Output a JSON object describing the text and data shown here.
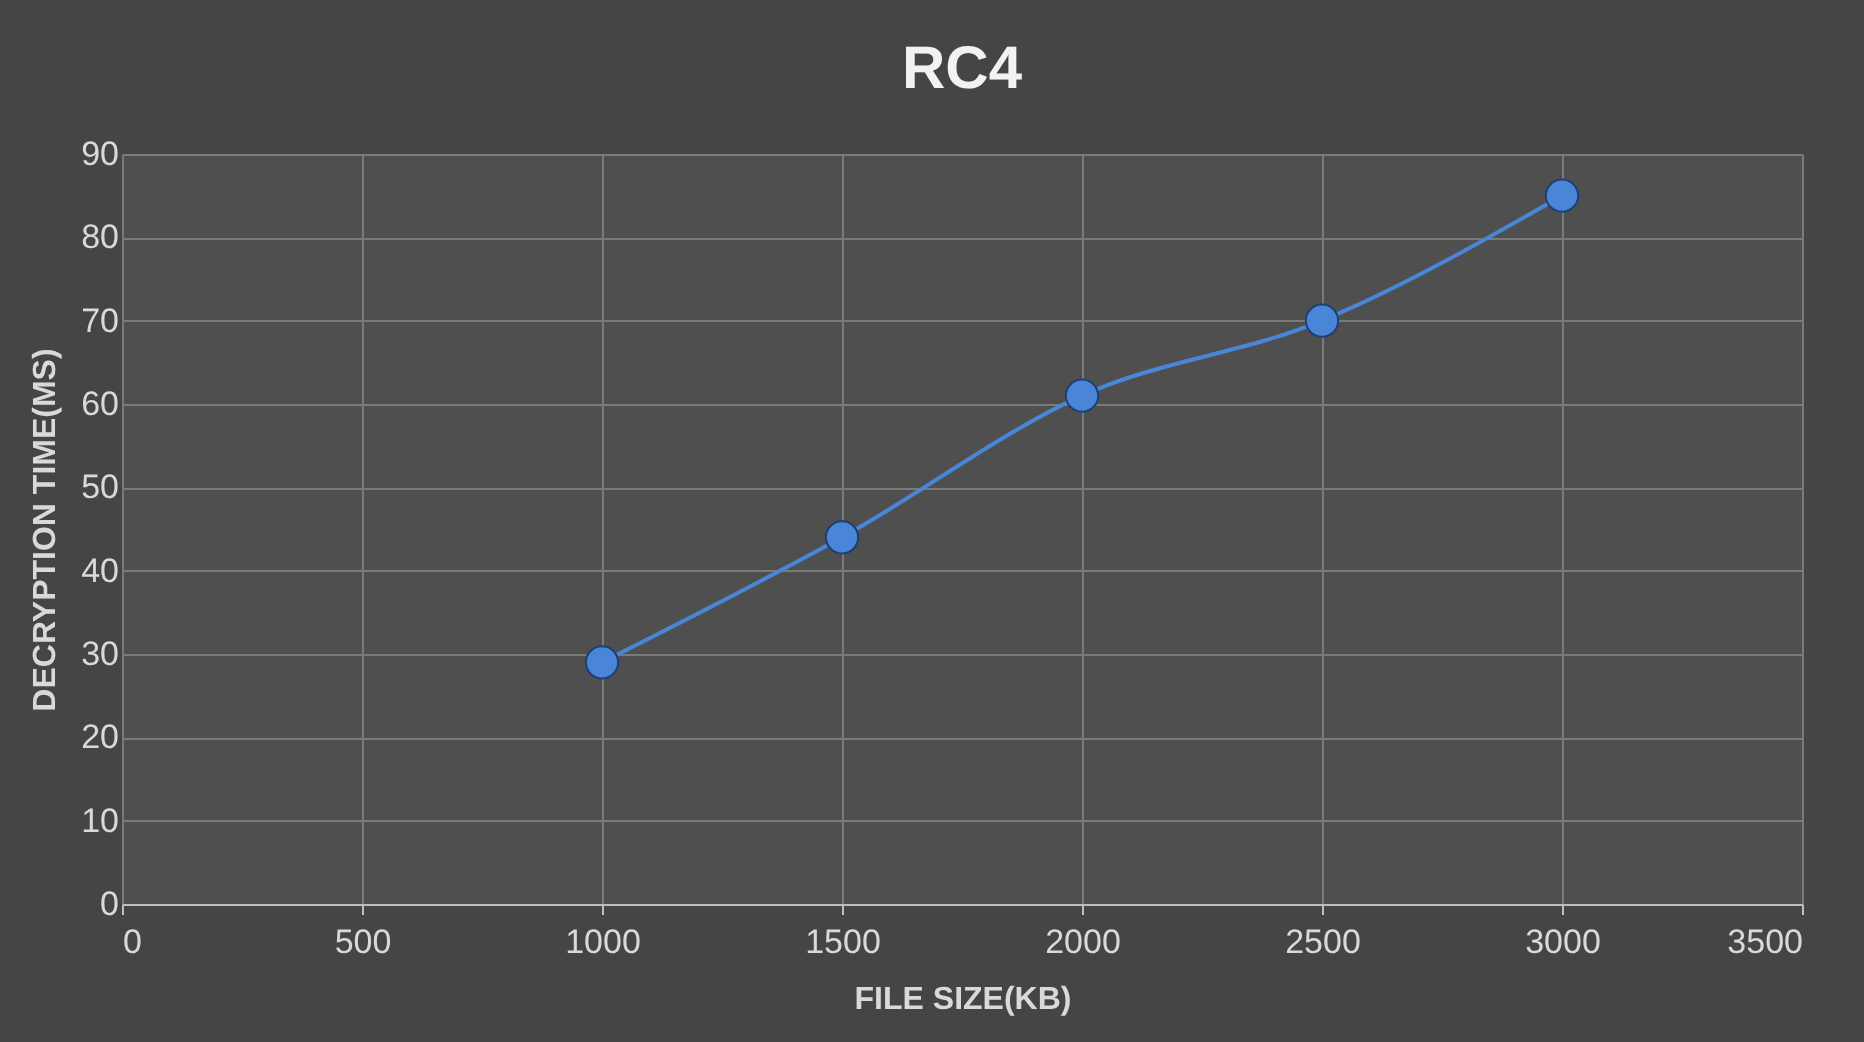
{
  "chart_data": {
    "type": "line",
    "title": "RC4",
    "xlabel": "FILE SIZE(KB)",
    "ylabel": "DECRYPTION TIME(MS)",
    "x": [
      1000,
      1500,
      2000,
      2500,
      3000
    ],
    "series": [
      {
        "color": "#4a86d8",
        "values": [
          29,
          44,
          61,
          70,
          85
        ]
      }
    ],
    "xlim": [
      0,
      3500
    ],
    "xticks": [
      0,
      500,
      1000,
      1500,
      2000,
      2500,
      3000,
      3500
    ],
    "ylim": [
      0,
      90
    ],
    "yticks": [
      0,
      10,
      20,
      30,
      40,
      50,
      60,
      70,
      80,
      90
    ],
    "grid": true,
    "marker": "circle",
    "line_style": "solid"
  }
}
